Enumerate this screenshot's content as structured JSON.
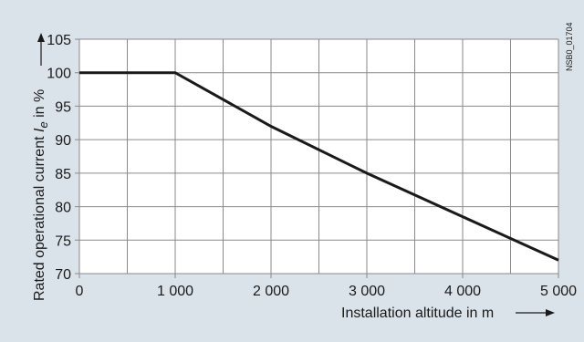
{
  "chart_data": {
    "type": "line",
    "title": "",
    "code": "NSB0_01704",
    "xlabel": "Installation altitude in m",
    "ylabel_prefix": "Rated operational current ",
    "ylabel_symbol": "I",
    "ylabel_subscript": "e",
    "ylabel_suffix": " in %",
    "xlim": [
      0,
      5000
    ],
    "ylim": [
      70,
      105
    ],
    "x_ticks": [
      0,
      1000,
      2000,
      3000,
      4000,
      5000
    ],
    "x_tick_labels": [
      "0",
      "1 000",
      "2 000",
      "3 000",
      "4 000",
      "5 000"
    ],
    "y_ticks": [
      70,
      75,
      80,
      85,
      90,
      95,
      100,
      105
    ],
    "y_tick_labels": [
      "70",
      "75",
      "80",
      "85",
      "90",
      "95",
      "100",
      "105"
    ],
    "x_grid_step": 500,
    "grid": true,
    "legend": "none",
    "colors": {
      "background": "#dbe3ea",
      "plot": "#ffffff",
      "grid": "#8a8a8a",
      "line": "#1a1a1a"
    },
    "series": [
      {
        "x": [
          0,
          1000,
          2000,
          3000,
          4000,
          5000
        ],
        "y": [
          100,
          100,
          92,
          85,
          78.5,
          72
        ]
      }
    ]
  }
}
